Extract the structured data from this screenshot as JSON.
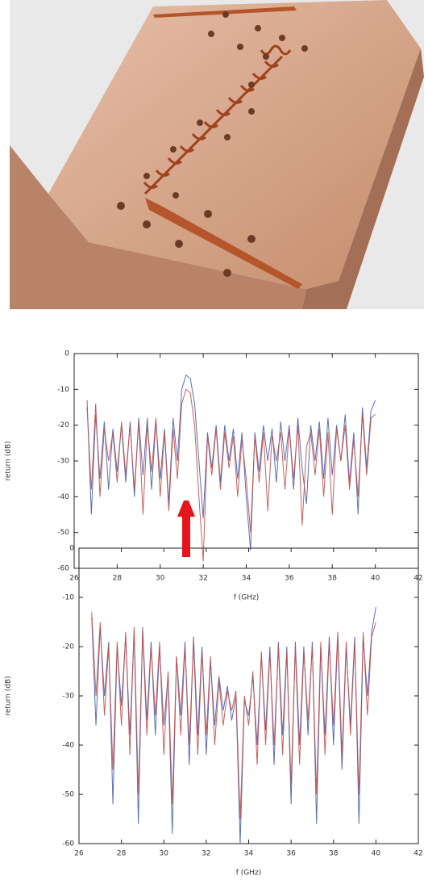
{
  "chart_data": [
    {
      "type": "line",
      "xlabel": "f (GHz)",
      "ylabel": "return (dB)",
      "xlim": [
        26,
        42
      ],
      "ylim": [
        -60,
        0
      ],
      "xticks": [
        26,
        28,
        30,
        32,
        34,
        36,
        38,
        40,
        42
      ],
      "yticks": [
        0,
        -10,
        -20,
        -30,
        -40,
        -50,
        -60
      ],
      "x": [
        26.6,
        26.8,
        27,
        27.2,
        27.4,
        27.6,
        27.8,
        28,
        28.2,
        28.4,
        28.6,
        28.8,
        29,
        29.2,
        29.4,
        29.6,
        29.8,
        30,
        30.2,
        30.4,
        30.6,
        30.8,
        31,
        31.2,
        31.4,
        31.6,
        31.8,
        32,
        32.2,
        32.4,
        32.6,
        32.8,
        33,
        33.2,
        33.4,
        33.6,
        33.8,
        34,
        34.2,
        34.4,
        34.6,
        34.8,
        35,
        35.2,
        35.4,
        35.6,
        35.8,
        36,
        36.2,
        36.4,
        36.6,
        36.8,
        37,
        37.2,
        37.4,
        37.6,
        37.8,
        38,
        38.2,
        38.4,
        38.6,
        38.8,
        39,
        39.2,
        39.4,
        39.6,
        39.8,
        40
      ],
      "series": [
        {
          "color": "#4a5ea8",
          "values": [
            -13,
            -45,
            -17,
            -35,
            -19,
            -38,
            -21,
            -33,
            -20,
            -36,
            -19,
            -40,
            -18,
            -34,
            -18,
            -38,
            -19,
            -35,
            -21,
            -42,
            -18,
            -30,
            -10,
            -6,
            -7,
            -14,
            -30,
            -46,
            -22,
            -32,
            -20,
            -36,
            -20,
            -30,
            -21,
            -35,
            -22,
            -40,
            -55,
            -22,
            -33,
            -20,
            -30,
            -21,
            -36,
            -19,
            -30,
            -20,
            -38,
            -18,
            -32,
            -42,
            -20,
            -30,
            -19,
            -35,
            -18,
            -34,
            -20,
            -30,
            -17,
            -36,
            -22,
            -45,
            -15,
            -32,
            -16,
            -13
          ]
        },
        {
          "color": "#c0504d",
          "values": [
            -15,
            -38,
            -14,
            -40,
            -21,
            -30,
            -22,
            -36,
            -19,
            -34,
            -20,
            -38,
            -19,
            -45,
            -20,
            -33,
            -18,
            -40,
            -22,
            -44,
            -21,
            -35,
            -14,
            -10,
            -11,
            -20,
            -40,
            -58,
            -23,
            -34,
            -21,
            -38,
            -22,
            -32,
            -23,
            -40,
            -24,
            -35,
            -50,
            -23,
            -36,
            -22,
            -44,
            -23,
            -30,
            -22,
            -38,
            -21,
            -35,
            -20,
            -48,
            -26,
            -22,
            -34,
            -21,
            -40,
            -22,
            -45,
            -21,
            -30,
            -20,
            -38,
            -24,
            -40,
            -17,
            -34,
            -18,
            -17
          ]
        }
      ]
    },
    {
      "type": "line",
      "xlabel": "f (GHz)",
      "ylabel": "return (dB)",
      "xlim": [
        26,
        42
      ],
      "ylim": [
        -60,
        0
      ],
      "xticks": [
        26,
        28,
        30,
        32,
        34,
        36,
        38,
        40,
        42
      ],
      "yticks": [
        0,
        -10,
        -20,
        -30,
        -40,
        -50,
        -60
      ],
      "x": [
        26.6,
        26.8,
        27,
        27.2,
        27.4,
        27.6,
        27.8,
        28,
        28.2,
        28.4,
        28.6,
        28.8,
        29,
        29.2,
        29.4,
        29.6,
        29.8,
        30,
        30.2,
        30.4,
        30.6,
        30.8,
        31,
        31.2,
        31.4,
        31.6,
        31.8,
        32,
        32.2,
        32.4,
        32.6,
        32.8,
        33,
        33.2,
        33.4,
        33.6,
        33.8,
        34,
        34.2,
        34.4,
        34.6,
        34.8,
        35,
        35.2,
        35.4,
        35.6,
        35.8,
        36,
        36.2,
        36.4,
        36.6,
        36.8,
        37,
        37.2,
        37.4,
        37.6,
        37.8,
        38,
        38.2,
        38.4,
        38.6,
        38.8,
        39,
        39.2,
        39.4,
        39.6,
        39.8,
        40
      ],
      "series": [
        {
          "color": "#4a5ea8",
          "values": [
            -14,
            -36,
            -16,
            -30,
            -19,
            -52,
            -20,
            -32,
            -18,
            -38,
            -17,
            -56,
            -16,
            -35,
            -19,
            -38,
            -20,
            -36,
            -26,
            -58,
            -22,
            -34,
            -19,
            -44,
            -18,
            -38,
            -20,
            -42,
            -23,
            -36,
            -26,
            -33,
            -28,
            -35,
            -30,
            -60,
            -31,
            -34,
            -26,
            -40,
            -22,
            -37,
            -20,
            -44,
            -19,
            -38,
            -20,
            -52,
            -19,
            -40,
            -20,
            -38,
            -19,
            -56,
            -20,
            -38,
            -18,
            -40,
            -18,
            -45,
            -20,
            -36,
            -18,
            -56,
            -18,
            -30,
            -17,
            -12
          ]
        },
        {
          "color": "#c0504d",
          "values": [
            -13,
            -30,
            -15,
            -34,
            -20,
            -45,
            -19,
            -36,
            -17,
            -42,
            -16,
            -50,
            -17,
            -38,
            -20,
            -34,
            -19,
            -42,
            -25,
            -52,
            -22,
            -38,
            -20,
            -40,
            -19,
            -42,
            -21,
            -38,
            -22,
            -40,
            -27,
            -36,
            -29,
            -33,
            -29,
            -55,
            -30,
            -36,
            -25,
            -44,
            -21,
            -40,
            -21,
            -40,
            -20,
            -42,
            -21,
            -48,
            -20,
            -44,
            -21,
            -35,
            -20,
            -50,
            -19,
            -42,
            -19,
            -36,
            -17,
            -42,
            -19,
            -38,
            -19,
            -50,
            -17,
            -34,
            -18,
            -15
          ]
        }
      ]
    }
  ]
}
